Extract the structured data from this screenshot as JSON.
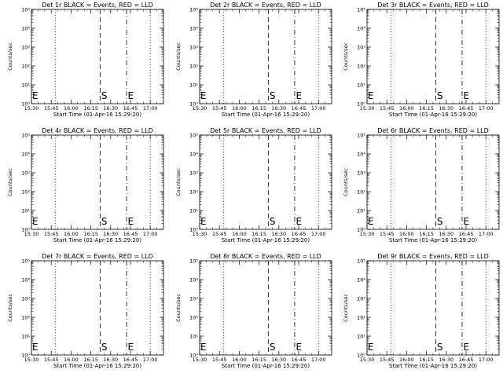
{
  "figure": {
    "panels": [
      {
        "title": "Det 1r BLACK = Events, RED = LLD"
      },
      {
        "title": "Det 2r BLACK = Events, RED = LLD"
      },
      {
        "title": "Det 3r BLACK = Events, RED = LLD"
      },
      {
        "title": "Det 4r BLACK = Events, RED = LLD"
      },
      {
        "title": "Det 5r BLACK = Events, RED = LLD"
      },
      {
        "title": "Det 6r BLACK = Events, RED = LLD"
      },
      {
        "title": "Det 7r BLACK = Events, RED = LLD"
      },
      {
        "title": "Det 8r BLACK = Events, RED = LLD"
      },
      {
        "title": "Det 9r BLACK = Events, RED = LLD"
      }
    ],
    "xlabel": "Start Time (01-Apr-16 15:29:20)",
    "ylabel": "Counts/sec",
    "xticks": [
      "15:30",
      "15:45",
      "16:00",
      "16:15",
      "16:30",
      "16:45",
      "17:00"
    ],
    "yticks": [
      "10⁰",
      "10¹",
      "10²",
      "10³",
      "10⁴",
      "10⁵"
    ]
  },
  "chart_data": {
    "type": "line",
    "layout": "3x3 grid of identical empty time-series panels",
    "x_unit": "minutes from 15:30",
    "xlim": [
      0,
      100
    ],
    "ylim": [
      1,
      100000
    ],
    "y_scale": "log",
    "series": [],
    "vlines": [
      {
        "x": 18,
        "style": "dotted"
      },
      {
        "x": 52,
        "style": "dashed"
      },
      {
        "x": 72,
        "style": "dashdot"
      },
      {
        "x": 90,
        "style": "dotted"
      }
    ],
    "markers": [
      {
        "label": "E",
        "x": 0
      },
      {
        "label": "S",
        "x": 52
      },
      {
        "label": "E",
        "x": 72
      }
    ]
  }
}
